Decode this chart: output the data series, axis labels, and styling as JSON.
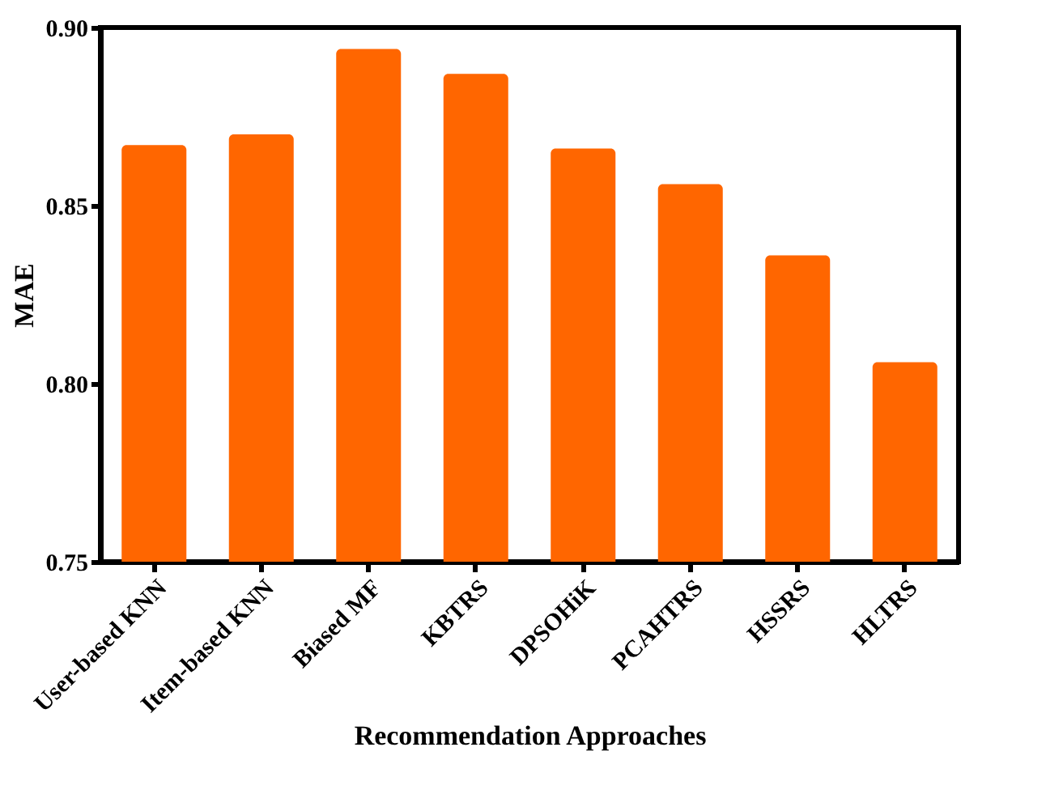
{
  "chart_data": {
    "type": "bar",
    "xlabel": "Recommendation Approaches",
    "ylabel": "MAE",
    "categories": [
      "User-based KNN",
      "Item-based KNN",
      "Biased MF",
      "KBTRS",
      "DPSOHiK",
      "PCAHTRS",
      "HSSRS",
      "HLTRS"
    ],
    "values": [
      0.867,
      0.87,
      0.894,
      0.887,
      0.866,
      0.856,
      0.836,
      0.806
    ],
    "color": "#ff6600",
    "ylim": [
      0.75,
      0.9
    ],
    "yticks": [
      0.75,
      {
        "value": 0.8,
        "label": "0.80"
      },
      0.85,
      {
        "value": 0.9,
        "label": "0.90"
      }
    ],
    "grid": false
  }
}
